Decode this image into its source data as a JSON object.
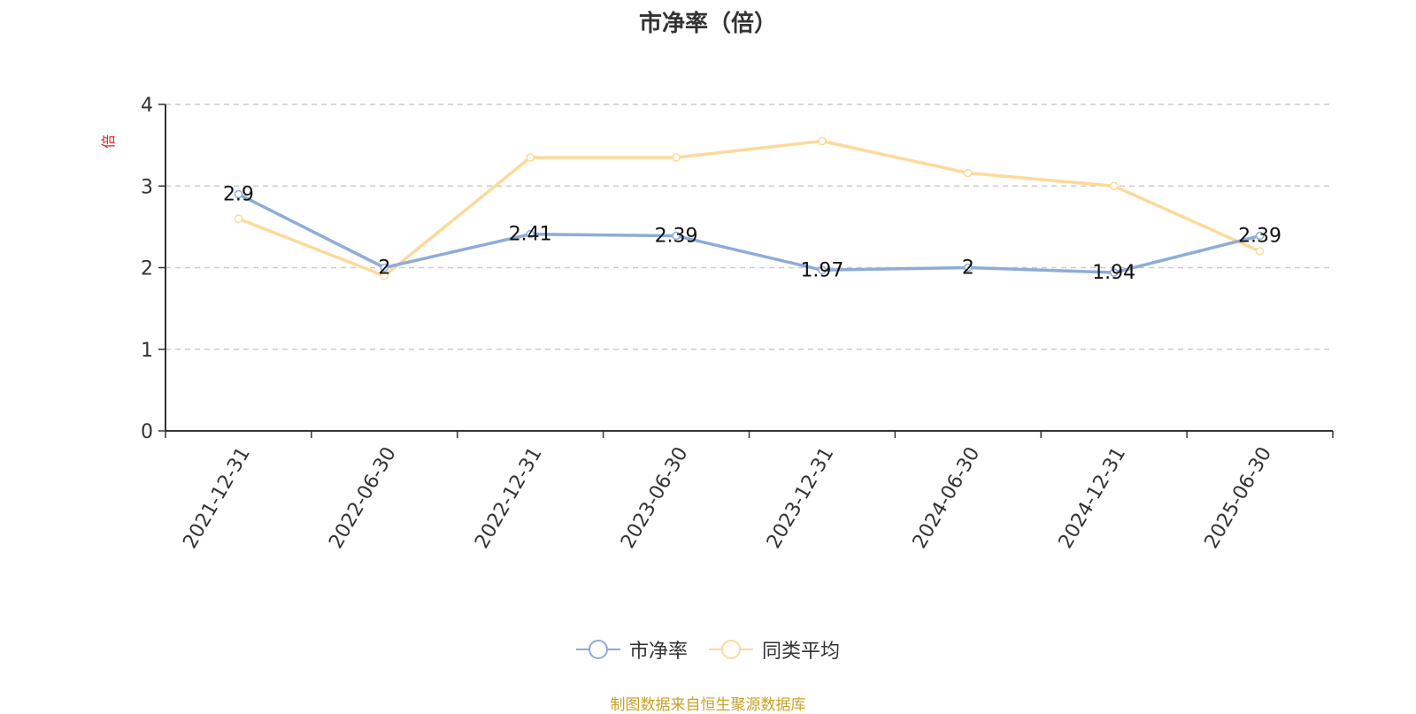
{
  "chart_data": {
    "type": "line",
    "title": "市净率（倍）",
    "ylabel": "倍",
    "categories": [
      "2021-12-31",
      "2022-06-30",
      "2022-12-31",
      "2023-06-30",
      "2023-12-31",
      "2024-06-30",
      "2024-12-31",
      "2025-06-30"
    ],
    "series": [
      {
        "name": "市净率",
        "values": [
          2.9,
          2,
          2.41,
          2.39,
          1.97,
          2,
          1.94,
          2.39
        ],
        "labels": [
          "2.9",
          "2",
          "2.41",
          "2.39",
          "1.97",
          "2",
          "1.94",
          "2.39"
        ],
        "color": "#8eacd8"
      },
      {
        "name": "同类平均",
        "values": [
          2.6,
          1.9,
          3.35,
          3.35,
          3.55,
          3.16,
          3.0,
          2.2
        ],
        "color": "#fdd99b"
      }
    ],
    "ylim": [
      0,
      4
    ],
    "yticks": [
      0,
      1,
      2,
      3,
      4
    ],
    "grid": true,
    "legend_position": "bottom"
  },
  "source_note": "制图数据来自恒生聚源数据库",
  "colors": {
    "axis": "#333333",
    "grid": "#cccccc",
    "ylabel": "#e02020"
  }
}
